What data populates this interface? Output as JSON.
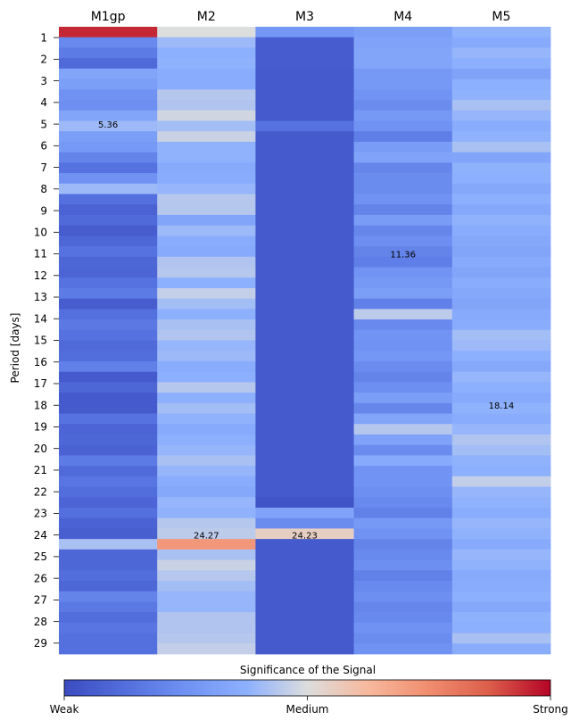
{
  "chart_data": {
    "type": "heatmap",
    "columns": [
      "M1gp",
      "M2",
      "M3",
      "M4",
      "M5"
    ],
    "ylabel": "Period [days]",
    "y_ticks": [
      "1",
      "2",
      "3",
      "4",
      "5",
      "6",
      "7",
      "8",
      "9",
      "10",
      "11",
      "12",
      "13",
      "14",
      "15",
      "16",
      "17",
      "18",
      "19",
      "20",
      "21",
      "22",
      "23",
      "24",
      "25",
      "26",
      "27",
      "28",
      "29"
    ],
    "row_range_days": [
      0.5,
      29.5
    ],
    "value_scale": "relative significance, 0 = weak, 0.5 = medium, 1 = strong",
    "colormap": "coolwarm",
    "colorbar": {
      "title": "Significance of the Signal",
      "tick_labels": [
        "Weak",
        "Medium",
        "Strong"
      ]
    },
    "annotations": [
      {
        "column": "M1gp",
        "period": 5.0,
        "text": "5.36"
      },
      {
        "column": "M4",
        "period": 11.0,
        "text": "11.36"
      },
      {
        "column": "M5",
        "period": 18.0,
        "text": "18.14"
      },
      {
        "column": "M2",
        "period": 24.0,
        "text": "24.27"
      },
      {
        "column": "M3",
        "period": 24.0,
        "text": "24.23"
      }
    ],
    "series": [
      {
        "column": "M1gp",
        "values": [
          0.95,
          0.22,
          0.17,
          0.11,
          0.33,
          0.3,
          0.25,
          0.24,
          0.33,
          0.4,
          0.3,
          0.28,
          0.2,
          0.14,
          0.25,
          0.4,
          0.13,
          0.08,
          0.11,
          0.06,
          0.1,
          0.14,
          0.1,
          0.09,
          0.14,
          0.17,
          0.06,
          0.13,
          0.16,
          0.14,
          0.11,
          0.12,
          0.19,
          0.05,
          0.1,
          0.05,
          0.05,
          0.14,
          0.09,
          0.1,
          0.08,
          0.17,
          0.11,
          0.15,
          0.12,
          0.09,
          0.13,
          0.08,
          0.07,
          0.42,
          0.1,
          0.1,
          0.12,
          0.1,
          0.2,
          0.16,
          0.12,
          0.15,
          0.13,
          0.13
        ]
      },
      {
        "column": "M2",
        "values": [
          0.5,
          0.4,
          0.37,
          0.38,
          0.36,
          0.36,
          0.44,
          0.43,
          0.48,
          0.41,
          0.47,
          0.38,
          0.38,
          0.35,
          0.36,
          0.39,
          0.44,
          0.44,
          0.33,
          0.4,
          0.36,
          0.35,
          0.43,
          0.44,
          0.37,
          0.46,
          0.41,
          0.37,
          0.42,
          0.43,
          0.39,
          0.4,
          0.36,
          0.37,
          0.44,
          0.37,
          0.41,
          0.38,
          0.35,
          0.37,
          0.39,
          0.42,
          0.39,
          0.36,
          0.34,
          0.39,
          0.38,
          0.44,
          0.45,
          0.72,
          0.42,
          0.47,
          0.44,
          0.41,
          0.39,
          0.39,
          0.43,
          0.43,
          0.44,
          0.46
        ]
      },
      {
        "column": "M3",
        "values": [
          0.27,
          0.06,
          0.06,
          0.06,
          0.05,
          0.05,
          0.05,
          0.05,
          0.05,
          0.14,
          0.05,
          0.05,
          0.05,
          0.05,
          0.05,
          0.05,
          0.05,
          0.05,
          0.05,
          0.05,
          0.05,
          0.05,
          0.05,
          0.05,
          0.05,
          0.05,
          0.05,
          0.05,
          0.05,
          0.05,
          0.05,
          0.05,
          0.05,
          0.05,
          0.05,
          0.05,
          0.05,
          0.05,
          0.05,
          0.05,
          0.05,
          0.05,
          0.05,
          0.05,
          0.05,
          0.03,
          0.32,
          0.23,
          0.55,
          0.05,
          0.05,
          0.05,
          0.05,
          0.05,
          0.05,
          0.05,
          0.05,
          0.05,
          0.05,
          0.05
        ]
      },
      {
        "column": "M4",
        "values": [
          0.3,
          0.32,
          0.33,
          0.33,
          0.28,
          0.28,
          0.26,
          0.23,
          0.28,
          0.25,
          0.18,
          0.29,
          0.32,
          0.21,
          0.23,
          0.23,
          0.25,
          0.2,
          0.29,
          0.21,
          0.24,
          0.2,
          0.18,
          0.26,
          0.28,
          0.3,
          0.19,
          0.45,
          0.22,
          0.26,
          0.25,
          0.27,
          0.23,
          0.2,
          0.24,
          0.3,
          0.21,
          0.33,
          0.44,
          0.32,
          0.23,
          0.35,
          0.26,
          0.26,
          0.24,
          0.22,
          0.19,
          0.28,
          0.25,
          0.2,
          0.22,
          0.24,
          0.19,
          0.22,
          0.24,
          0.21,
          0.22,
          0.25,
          0.23,
          0.25
        ]
      },
      {
        "column": "M5",
        "values": [
          0.38,
          0.35,
          0.39,
          0.37,
          0.32,
          0.37,
          0.38,
          0.42,
          0.39,
          0.36,
          0.38,
          0.42,
          0.33,
          0.38,
          0.37,
          0.34,
          0.37,
          0.34,
          0.38,
          0.36,
          0.34,
          0.33,
          0.35,
          0.33,
          0.36,
          0.34,
          0.33,
          0.35,
          0.36,
          0.41,
          0.4,
          0.37,
          0.34,
          0.39,
          0.37,
          0.35,
          0.38,
          0.36,
          0.39,
          0.43,
          0.41,
          0.38,
          0.37,
          0.46,
          0.39,
          0.38,
          0.36,
          0.39,
          0.38,
          0.35,
          0.39,
          0.38,
          0.35,
          0.36,
          0.37,
          0.34,
          0.38,
          0.37,
          0.42,
          0.36
        ]
      }
    ]
  }
}
